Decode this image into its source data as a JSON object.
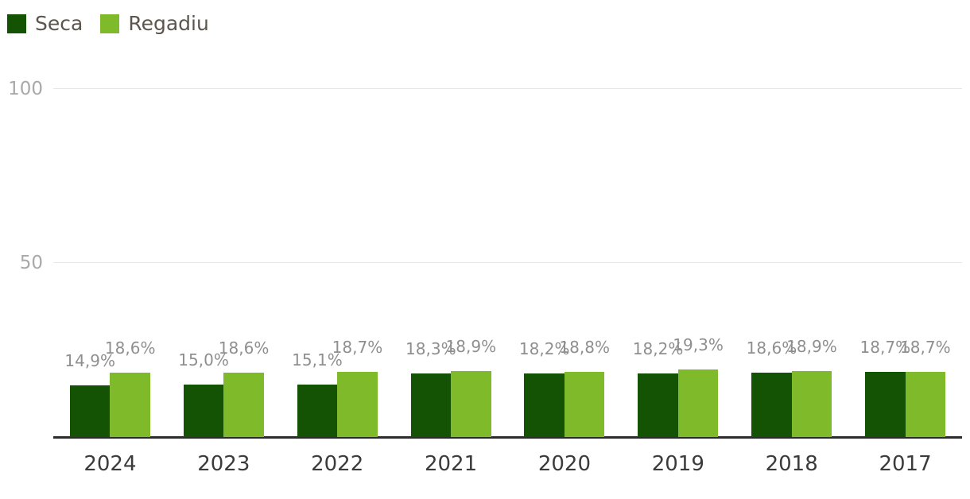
{
  "legend": [
    {
      "label": "Seca",
      "color": "#145204"
    },
    {
      "label": "Regadiu",
      "color": "#7eba2a"
    }
  ],
  "chart_data": {
    "type": "bar",
    "title": "",
    "unit": "%",
    "categories": [
      "2024",
      "2023",
      "2022",
      "2021",
      "2020",
      "2019",
      "2018",
      "2017"
    ],
    "series": [
      {
        "name": "Seca",
        "color": "#145204",
        "values": [
          14.9,
          15.0,
          15.1,
          18.3,
          18.2,
          18.2,
          18.6,
          18.7
        ],
        "labels": [
          "14,9%",
          "15,0%",
          "15,1%",
          "18,3%",
          "18,2%",
          "18,2%",
          "18,6%",
          "18,7%"
        ]
      },
      {
        "name": "Regadiu",
        "color": "#7eba2a",
        "values": [
          18.6,
          18.6,
          18.7,
          18.9,
          18.8,
          19.3,
          18.9,
          18.7
        ],
        "labels": [
          "18,6%",
          "18,6%",
          "18,7%",
          "18,9%",
          "18,8%",
          "19,3%",
          "18,9%",
          "18,7%"
        ]
      }
    ],
    "value_axis": {
      "ticks": [
        50,
        100
      ],
      "tick_labels": [
        "50",
        "100"
      ],
      "range": [
        0,
        100
      ],
      "grid": true
    },
    "legend_position": "top-left"
  }
}
